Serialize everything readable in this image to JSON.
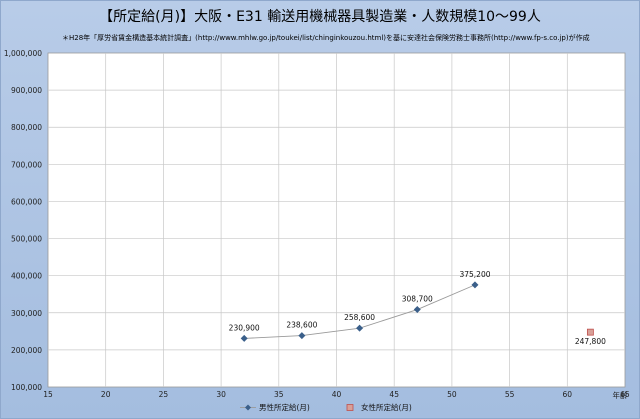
{
  "chart_data": {
    "type": "scatter",
    "title": "【所定給(月)】大阪・E31 輸送用機械器具製造業・人数規模10～99人",
    "subtitle": "＊H28年「厚労省賃金構造基本統計調査」(http://www.mhlw.go.jp/toukei/list/chinginkouzou.html)を基に安達社会保険労務士事務所(http://www.fp-s.co.jp)が作成",
    "xlabel": "年齢",
    "ylabel": "",
    "xlim": [
      15,
      65
    ],
    "ylim": [
      100000,
      1000000
    ],
    "x_ticks": [
      15,
      20,
      25,
      30,
      35,
      40,
      45,
      50,
      55,
      60,
      65
    ],
    "y_ticks": [
      100000,
      200000,
      300000,
      400000,
      500000,
      600000,
      700000,
      800000,
      900000,
      1000000
    ],
    "x_tick_labels": [
      "15",
      "20",
      "25",
      "30",
      "35",
      "40",
      "45",
      "50",
      "55",
      "60",
      "65"
    ],
    "y_tick_labels": [
      "100,000",
      "200,000",
      "300,000",
      "400,000",
      "500,000",
      "600,000",
      "700,000",
      "800,000",
      "900,000",
      "1,000,000"
    ],
    "grid": true,
    "legend_position": "bottom",
    "series": [
      {
        "name": "男性所定給(月)",
        "color": "#3a5f8a",
        "marker": "diamond",
        "line": true,
        "points": [
          {
            "x": 32,
            "y": 230900,
            "label": "230,900"
          },
          {
            "x": 37,
            "y": 238600,
            "label": "238,600"
          },
          {
            "x": 42,
            "y": 258600,
            "label": "258,600"
          },
          {
            "x": 47,
            "y": 308700,
            "label": "308,700"
          },
          {
            "x": 52,
            "y": 375200,
            "label": "375,200"
          }
        ]
      },
      {
        "name": "女性所定給(月)",
        "color": "#c0504d",
        "marker": "square",
        "line": false,
        "points": [
          {
            "x": 62,
            "y": 247800,
            "label": "247,800"
          }
        ]
      }
    ]
  }
}
